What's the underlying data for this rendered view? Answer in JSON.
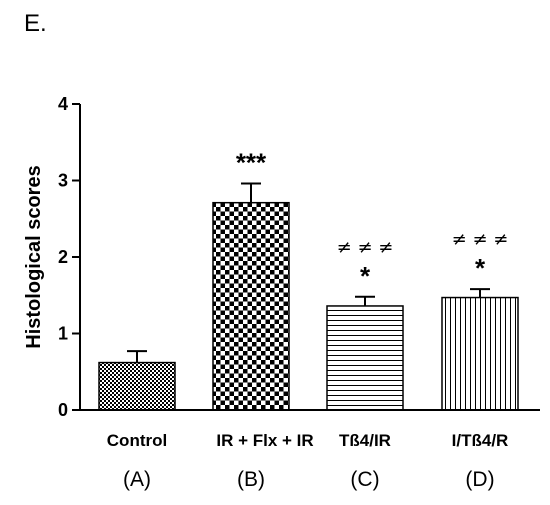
{
  "panel_label": "E.",
  "chart_data": {
    "type": "bar",
    "title": "",
    "ylabel": "Histological scores",
    "ylim": [
      0,
      4
    ],
    "yticks": [
      0,
      1,
      2,
      3,
      4
    ],
    "categories": [
      "Control",
      "IR + Flx + IR",
      "Tß4/IR",
      "I/Tß4/R"
    ],
    "category_codes": [
      "(A)",
      "(B)",
      "(C)",
      "(D)"
    ],
    "values": [
      0.62,
      2.71,
      1.36,
      1.47
    ],
    "errors": [
      0.15,
      0.25,
      0.12,
      0.11
    ],
    "patterns": [
      "fine-checker",
      "checker",
      "horizontal-lines",
      "vertical-lines"
    ],
    "annotations": [
      {
        "category": 1,
        "stars": "***",
        "neq": ""
      },
      {
        "category": 2,
        "stars": "*",
        "neq": "≠ ≠ ≠"
      },
      {
        "category": 3,
        "stars": "*",
        "neq": "≠ ≠ ≠"
      }
    ]
  }
}
